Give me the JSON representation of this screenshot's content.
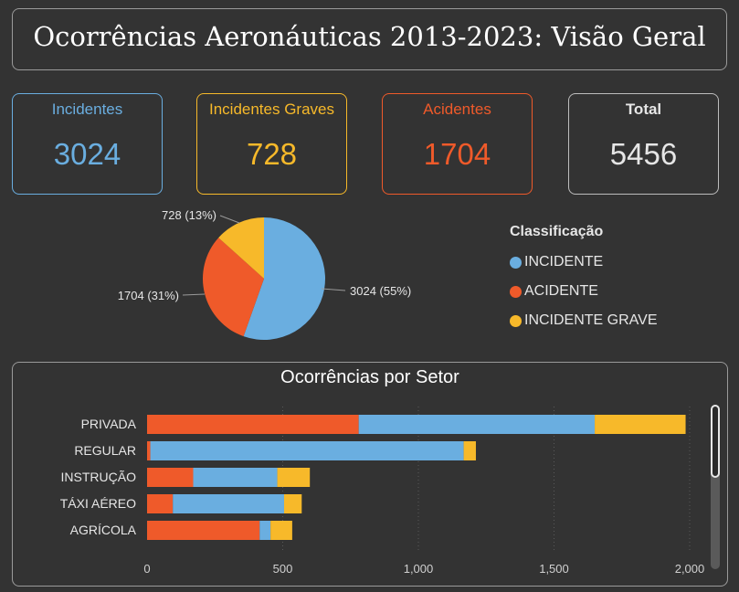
{
  "header": {
    "title": "Ocorrências Aeronáuticas 2013-2023: Visão Geral"
  },
  "kpis": [
    {
      "label": "Incidentes",
      "value": "3024",
      "color": "#6aaee0"
    },
    {
      "label": "Incidentes Graves",
      "value": "728",
      "color": "#f7b92a"
    },
    {
      "label": "Acidentes",
      "value": "1704",
      "color": "#ef5a2a"
    },
    {
      "label": "Total",
      "value": "5456",
      "color": "#e6e6e6"
    }
  ],
  "legend": {
    "title": "Classificação",
    "items": [
      {
        "label": "INCIDENTE",
        "color": "#6aaee0"
      },
      {
        "label": "ACIDENTE",
        "color": "#ef5a2a"
      },
      {
        "label": "INCIDENTE GRAVE",
        "color": "#f7b92a"
      }
    ]
  },
  "chart_data": [
    {
      "type": "pie",
      "slices": [
        {
          "name": "INCIDENTE",
          "value": 3024,
          "label": "3024 (55%)",
          "color": "#6aaee0"
        },
        {
          "name": "ACIDENTE",
          "value": 1704,
          "label": "1704 (31%)",
          "color": "#ef5a2a"
        },
        {
          "name": "INCIDENTE GRAVE",
          "value": 728,
          "label": "728 (13%)",
          "color": "#f7b92a"
        }
      ]
    },
    {
      "type": "bar",
      "orientation": "horizontal",
      "stacked": true,
      "title": "Ocorrências por Setor",
      "categories": [
        "PRIVADA",
        "REGULAR",
        "INSTRUÇÃO",
        "TÁXI AÉREO",
        "AGRÍCOLA"
      ],
      "series": [
        {
          "name": "ACIDENTE",
          "color": "#ef5a2a",
          "values": [
            780,
            12,
            170,
            95,
            415
          ]
        },
        {
          "name": "INCIDENTE",
          "color": "#6aaee0",
          "values": [
            870,
            1155,
            310,
            410,
            40
          ]
        },
        {
          "name": "INCIDENTE GRAVE",
          "color": "#f7b92a",
          "values": [
            335,
            45,
            120,
            65,
            80
          ]
        }
      ],
      "xlim": [
        0,
        2000
      ],
      "xticks": [
        0,
        500,
        1000,
        1500,
        2000
      ],
      "xtick_labels": [
        "0",
        "500",
        "1,000",
        "1,500",
        "2,000"
      ],
      "grid": true
    }
  ]
}
